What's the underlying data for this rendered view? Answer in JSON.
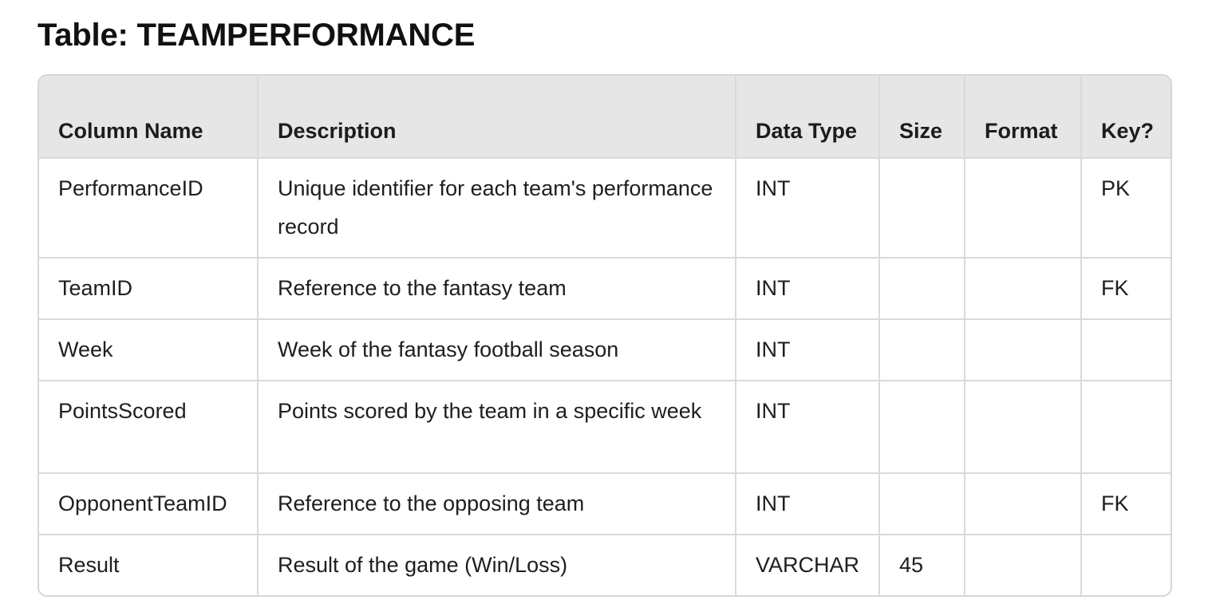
{
  "title": "Table: TEAMPERFORMANCE",
  "columns": [
    "Column Name",
    "Description",
    "Data Type",
    "Size",
    "Format",
    "Key?"
  ],
  "rows": [
    {
      "name": "PerformanceID",
      "description": "Unique identifier for each team's performance record",
      "type": "INT",
      "size": "",
      "format": "",
      "key": "PK"
    },
    {
      "name": "TeamID",
      "description": "Reference to the fantasy team",
      "type": "INT",
      "size": "",
      "format": "",
      "key": "FK"
    },
    {
      "name": "Week",
      "description": "Week of the fantasy football season",
      "type": "INT",
      "size": "",
      "format": "",
      "key": ""
    },
    {
      "name": "PointsScored",
      "description": "Points scored by the team in a specific week",
      "type": "INT",
      "size": "",
      "format": "",
      "key": ""
    },
    {
      "name": "OpponentTeamID",
      "description": "Reference to the opposing team",
      "type": "INT",
      "size": "",
      "format": "",
      "key": "FK"
    },
    {
      "name": "Result",
      "description": "Result of the game (Win/Loss)",
      "type": "VARCHAR",
      "size": "45",
      "format": "",
      "key": ""
    }
  ]
}
